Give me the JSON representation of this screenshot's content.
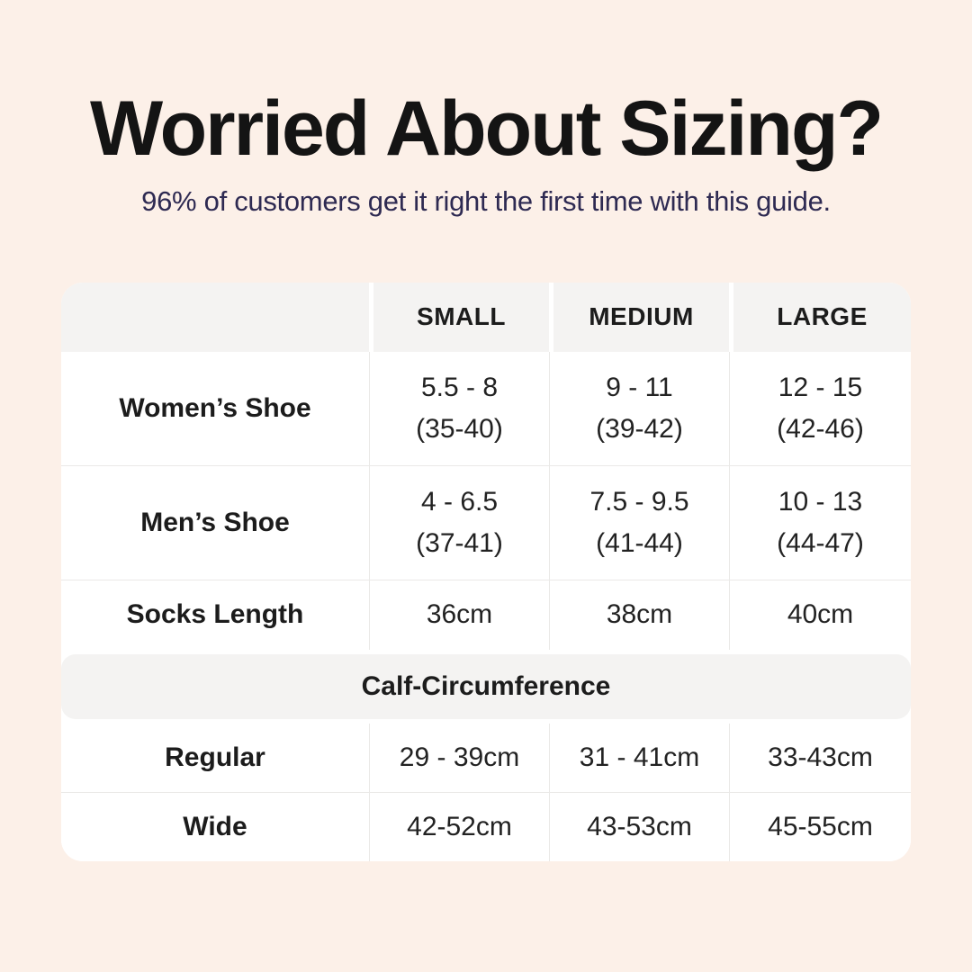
{
  "header": {
    "title": "Worried About Sizing?",
    "subtitle": "96% of customers get it right the first time with this guide."
  },
  "table": {
    "columns": [
      "SMALL",
      "MEDIUM",
      "LARGE"
    ],
    "rows": [
      {
        "label": "Women’s Shoe",
        "cells": [
          {
            "main": "5.5 - 8",
            "sub": "(35-40)"
          },
          {
            "main": "9 - 11",
            "sub": "(39-42)"
          },
          {
            "main": "12 - 15",
            "sub": "(42-46)"
          }
        ]
      },
      {
        "label": "Men’s Shoe",
        "cells": [
          {
            "main": "4 - 6.5",
            "sub": "(37-41)"
          },
          {
            "main": "7.5 - 9.5",
            "sub": "(41-44)"
          },
          {
            "main": "10 - 13",
            "sub": "(44-47)"
          }
        ]
      },
      {
        "label": "Socks Length",
        "cells": [
          {
            "main": "36cm"
          },
          {
            "main": "38cm"
          },
          {
            "main": "40cm"
          }
        ]
      }
    ],
    "section_header": "Calf-Circumference",
    "section_rows": [
      {
        "label": "Regular",
        "cells": [
          {
            "main": "29 - 39cm"
          },
          {
            "main": "31 - 41cm"
          },
          {
            "main": "33-43cm"
          }
        ]
      },
      {
        "label": "Wide",
        "cells": [
          {
            "main": "42-52cm"
          },
          {
            "main": "43-53cm"
          },
          {
            "main": "45-55cm"
          }
        ]
      }
    ]
  },
  "colors": {
    "background": "#fcf0e8",
    "card": "#ffffff",
    "band_gray": "#f4f3f2",
    "separator": "#eae9e7",
    "title_text": "#141414",
    "subtitle_text": "#2e2a52",
    "table_text": "#1c1c1c"
  },
  "chart_data": {
    "type": "table",
    "title": "Worried About Sizing?",
    "subtitle": "96% of customers get it right the first time with this guide.",
    "columns": [
      "",
      "SMALL",
      "MEDIUM",
      "LARGE"
    ],
    "rows": [
      [
        "Women’s Shoe",
        "5.5 - 8 (35-40)",
        "9 - 11 (39-42)",
        "12 - 15 (42-46)"
      ],
      [
        "Men’s Shoe",
        "4 - 6.5 (37-41)",
        "7.5 - 9.5 (41-44)",
        "10 - 13 (44-47)"
      ],
      [
        "Socks Length",
        "36cm",
        "38cm",
        "40cm"
      ],
      [
        "Calf-Circumference",
        "",
        "",
        ""
      ],
      [
        "Regular",
        "29 - 39cm",
        "31 - 41cm",
        "33-43cm"
      ],
      [
        "Wide",
        "42-52cm",
        "43-53cm",
        "45-55cm"
      ]
    ]
  }
}
